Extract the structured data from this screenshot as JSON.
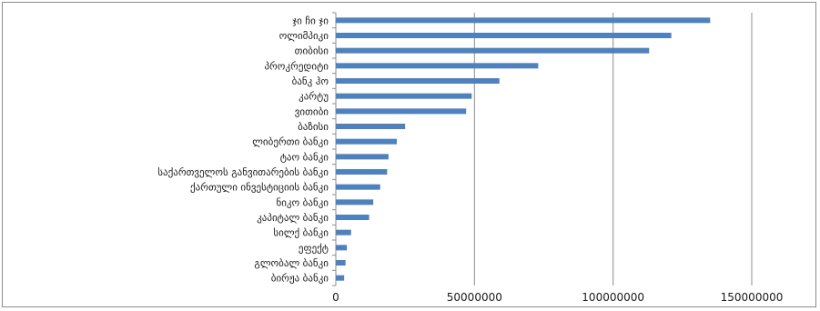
{
  "chart_data": {
    "type": "bar",
    "orientation": "horizontal",
    "categories": [
      "ჯი ჩი ჯი",
      "ოლიმპიკი",
      "თიბისი",
      "პროკრედიტი",
      "ბანკ ჰო",
      "კარტუ",
      "ვითიბი",
      "ბაზისი",
      "ლიბერთი ბანკი",
      "ტაო ბანკი",
      "საქართველოს განვითარების ბანკი",
      "ქართული ინვესტიციის ბანკი",
      "ნიკო ბანკი",
      "კაპიტალ ბანკი",
      "სილქ ბანკი",
      "ეფექტ",
      "გლობალ ბანკი",
      "ბირჟა ბანკი"
    ],
    "values": [
      135000000,
      121000000,
      113000000,
      73000000,
      59000000,
      49000000,
      47000000,
      25000000,
      22000000,
      19000000,
      18500000,
      16000000,
      13500000,
      12000000,
      5500000,
      4000000,
      3500000,
      3000000
    ],
    "xlim": [
      0,
      150000000
    ],
    "x_ticks": [
      0,
      50000000,
      100000000,
      150000000
    ],
    "x_tick_labels": [
      "0",
      "50000000",
      "100000000",
      "150000000"
    ],
    "grid": "vertical",
    "bar_color": "#4f81bd",
    "title": "",
    "xlabel": "",
    "ylabel": ""
  }
}
